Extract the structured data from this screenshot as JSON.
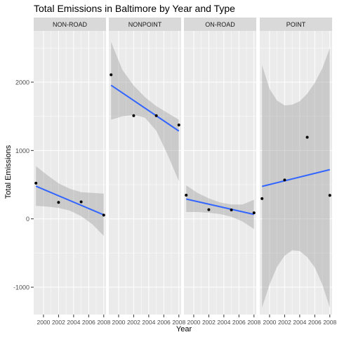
{
  "chart_data": {
    "type": "scatter",
    "title": "Total Emissions in Baltimore by Year and Type",
    "xlabel": "Year",
    "ylabel": "Total Emissions",
    "xlim": [
      1998.7,
      2008.3
    ],
    "ylim": [
      -1400,
      2750
    ],
    "x_ticks": [
      2000,
      2002,
      2004,
      2006,
      2008
    ],
    "x_tick_labels": [
      "2000",
      "2002",
      "2004",
      "2006",
      "2008"
    ],
    "y_ticks": [
      -1000,
      0,
      1000,
      2000
    ],
    "y_tick_labels": [
      "-1000",
      "0",
      "1000",
      "2000"
    ],
    "grid": true,
    "legend": "none",
    "colors": {
      "panel_bg": "#ebebeb",
      "strip_bg": "#d9d9d9",
      "grid": "#ffffff",
      "points": "#000000",
      "fit_line": "#3366ff",
      "confidence_band": "#999999"
    },
    "facets": [
      {
        "label": "NON-ROAD",
        "points": [
          {
            "x": 1999,
            "y": 522
          },
          {
            "x": 2002,
            "y": 241
          },
          {
            "x": 2005,
            "y": 249
          },
          {
            "x": 2008,
            "y": 55
          }
        ],
        "fit": {
          "x": [
            1999,
            2008
          ],
          "y": [
            478,
            58
          ]
        },
        "band": {
          "x": [
            1999,
            2000.5,
            2002,
            2003.5,
            2005,
            2006.5,
            2008
          ],
          "lower": [
            190,
            180,
            160,
            120,
            40,
            -80,
            -250
          ],
          "upper": [
            770,
            640,
            520,
            440,
            390,
            380,
            370
          ]
        }
      },
      {
        "label": "NONPOINT",
        "points": [
          {
            "x": 1999,
            "y": 2108
          },
          {
            "x": 2002,
            "y": 1510
          },
          {
            "x": 2005,
            "y": 1510
          },
          {
            "x": 2008,
            "y": 1373
          }
        ],
        "fit": {
          "x": [
            1999,
            2008
          ],
          "y": [
            1955,
            1285
          ]
        },
        "band": {
          "x": [
            1999,
            2000.5,
            2002,
            2003.5,
            2005,
            2006.5,
            2008
          ],
          "lower": [
            1450,
            1500,
            1520,
            1480,
            1290,
            940,
            550
          ],
          "upper": [
            2590,
            2180,
            1950,
            1780,
            1650,
            1550,
            1450
          ]
        }
      },
      {
        "label": "ON-ROAD",
        "points": [
          {
            "x": 1999,
            "y": 346
          },
          {
            "x": 2002,
            "y": 134
          },
          {
            "x": 2005,
            "y": 130
          },
          {
            "x": 2008,
            "y": 88
          }
        ],
        "fit": {
          "x": [
            1999,
            2008
          ],
          "y": [
            290,
            65
          ]
        },
        "band": {
          "x": [
            1999,
            2000.5,
            2002,
            2003.5,
            2005,
            2006.5,
            2008
          ],
          "lower": [
            100,
            100,
            90,
            70,
            30,
            -40,
            -150
          ],
          "upper": [
            490,
            380,
            300,
            240,
            210,
            210,
            280
          ]
        }
      },
      {
        "label": "POINT",
        "points": [
          {
            "x": 1999,
            "y": 296
          },
          {
            "x": 2002,
            "y": 569
          },
          {
            "x": 2005,
            "y": 1194
          },
          {
            "x": 2008,
            "y": 344
          }
        ],
        "fit": {
          "x": [
            1999,
            2008
          ],
          "y": [
            475,
            720
          ]
        },
        "band": {
          "x": [
            1999,
            2000,
            2001,
            2002,
            2003,
            2004,
            2005,
            2006,
            2007,
            2008
          ],
          "lower": [
            -1300,
            -960,
            -700,
            -540,
            -460,
            -470,
            -560,
            -710,
            -960,
            -1300
          ],
          "upper": [
            2250,
            1900,
            1730,
            1660,
            1670,
            1720,
            1830,
            1990,
            2200,
            2500
          ]
        }
      }
    ]
  }
}
